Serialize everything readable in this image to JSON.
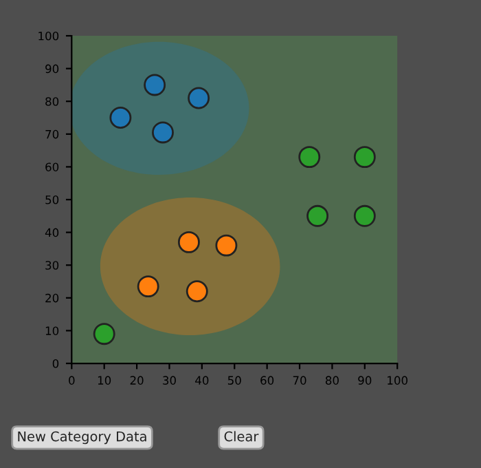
{
  "chart_data": {
    "type": "scatter",
    "xlim": [
      0,
      100
    ],
    "ylim": [
      0,
      100
    ],
    "xticks": [
      0,
      10,
      20,
      30,
      40,
      50,
      60,
      70,
      80,
      90,
      100
    ],
    "yticks": [
      0,
      10,
      20,
      30,
      40,
      50,
      60,
      70,
      80,
      90,
      100
    ],
    "grid": false,
    "legend": false,
    "marker": "circle",
    "series": [
      {
        "color": "#1f77b4",
        "x": [
          15,
          25.5,
          39,
          28
        ],
        "values": [
          75,
          85,
          81,
          70.5
        ]
      },
      {
        "color": "#ff7f0e",
        "x": [
          23.5,
          36,
          38.5,
          47.5
        ],
        "values": [
          23.5,
          37,
          22,
          36
        ]
      },
      {
        "color": "#2ca02c",
        "x": [
          10,
          73,
          90,
          75.5,
          90
        ],
        "values": [
          9,
          63,
          63,
          45,
          45
        ]
      }
    ],
    "annotations": [
      "New Category Data",
      "Clear"
    ]
  }
}
